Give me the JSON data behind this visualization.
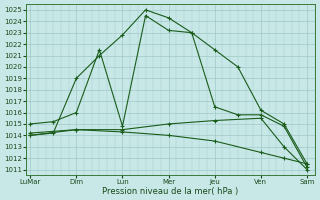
{
  "bg_color": "#c8e8e8",
  "grid_color": "#a0c8c8",
  "line_color": "#1a5c1a",
  "xlabel": "Pression niveau de la mer( hPa )",
  "xlabels": [
    "LuMar",
    "Dim",
    "Lun",
    "Mer",
    "Jeu",
    "Ven",
    "Sam"
  ],
  "x_major": [
    0,
    6,
    12,
    18,
    24,
    30,
    36
  ],
  "x_minor_step": 1,
  "xlim": [
    -0.5,
    37
  ],
  "ylim": [
    1010.5,
    1025.5
  ],
  "yticks": [
    1011,
    1012,
    1013,
    1014,
    1015,
    1016,
    1017,
    1018,
    1019,
    1020,
    1021,
    1022,
    1023,
    1024,
    1025
  ],
  "lines": [
    {
      "x": [
        0,
        3,
        6,
        9,
        12,
        15,
        18,
        21,
        24,
        27,
        30,
        33,
        36
      ],
      "y": [
        1014.0,
        1014.2,
        1019.0,
        1021.0,
        1022.8,
        1025.0,
        1024.3,
        1023.0,
        1021.5,
        1020.0,
        1016.2,
        1015.0,
        1011.5
      ]
    },
    {
      "x": [
        0,
        3,
        6,
        9,
        12,
        15,
        18,
        21,
        24,
        27,
        30,
        33,
        36
      ],
      "y": [
        1015.0,
        1015.2,
        1016.0,
        1021.5,
        1014.8,
        1024.5,
        1023.2,
        1023.0,
        1016.5,
        1015.8,
        1015.8,
        1014.8,
        1011.2
      ]
    },
    {
      "x": [
        0,
        6,
        12,
        18,
        24,
        30,
        33,
        36
      ],
      "y": [
        1014.0,
        1014.5,
        1014.5,
        1015.0,
        1015.3,
        1015.5,
        1013.0,
        1011.0
      ]
    },
    {
      "x": [
        0,
        6,
        12,
        18,
        24,
        30,
        33,
        36
      ],
      "y": [
        1014.2,
        1014.5,
        1014.3,
        1014.0,
        1013.5,
        1012.5,
        1012.0,
        1011.5
      ]
    }
  ]
}
